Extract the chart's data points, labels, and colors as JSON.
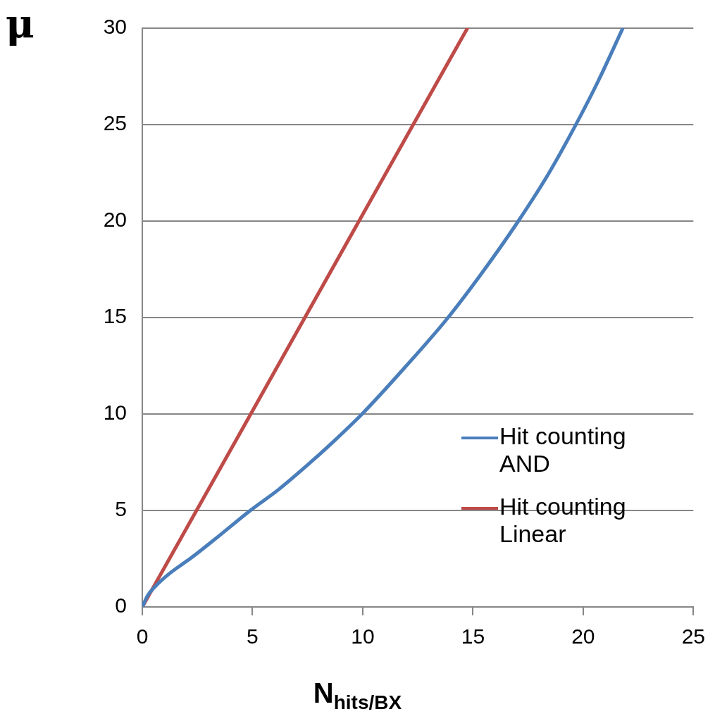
{
  "chart_data": {
    "type": "line",
    "xlabel": "N$_{hits/BX}$",
    "ylabel": "μ",
    "xlim": [
      0,
      25
    ],
    "xticks": [
      0,
      5,
      10,
      15,
      20,
      25
    ],
    "ylim": [
      0,
      30
    ],
    "yticks": [
      0,
      5,
      10,
      15,
      20,
      25,
      30
    ],
    "grid": "y",
    "legend": "right",
    "marker": "none",
    "line_style": "solid",
    "series": [
      {
        "name": "Hit counting AND",
        "color": "#4a7ebb",
        "x": [
          0,
          0.25,
          0.57,
          1.2,
          2.25,
          3.5,
          4.9,
          6.2,
          7.44,
          8.7,
          9.97,
          11.9,
          13.8,
          15.4,
          17.0,
          18.4,
          19.65,
          20.7,
          21.8
        ],
        "values": [
          0,
          0.6,
          1.04,
          1.7,
          2.57,
          3.7,
          5.0,
          6.1,
          7.3,
          8.6,
          10.0,
          12.4,
          14.9,
          17.3,
          19.9,
          22.4,
          24.96,
          27.3,
          30
        ]
      },
      {
        "name": "Hit counting Linear",
        "color": "#be4b48",
        "x": [
          0,
          4.92,
          9.83,
          14.75
        ],
        "values": [
          0,
          10,
          20,
          30
        ]
      }
    ]
  }
}
